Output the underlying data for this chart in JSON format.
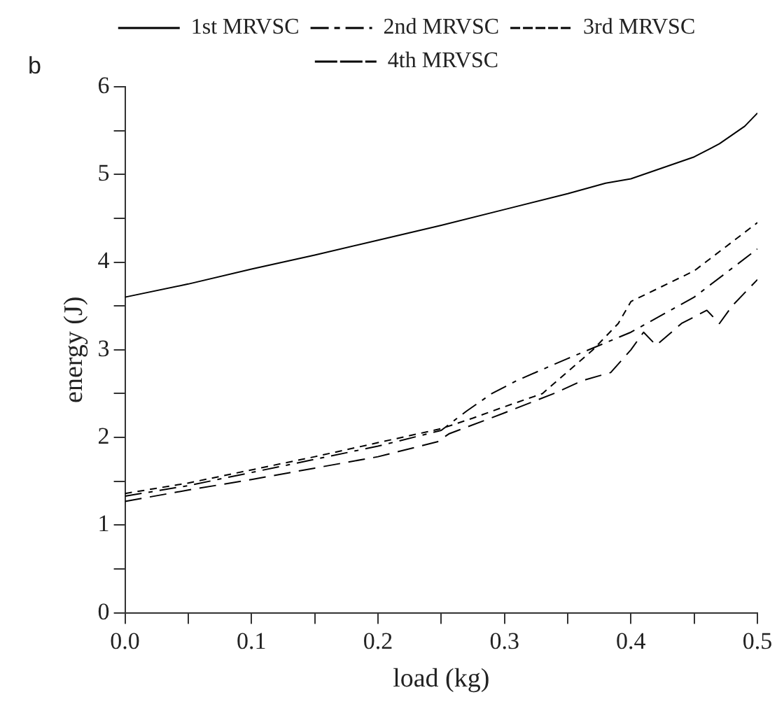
{
  "chart_data": {
    "type": "line",
    "xlabel": "load (kg)",
    "ylabel": "energy (J)",
    "annotations": [
      "b"
    ],
    "xlim": [
      0,
      0.5
    ],
    "xticks": [
      {
        "value": 0,
        "label": "0.0"
      },
      {
        "value": 0.05,
        "label": null
      },
      {
        "value": 0.1,
        "label": "0.1"
      },
      {
        "value": 0.15,
        "label": null
      },
      {
        "value": 0.2,
        "label": "0.2"
      },
      {
        "value": 0.25,
        "label": null
      },
      {
        "value": 0.3,
        "label": "0.3"
      },
      {
        "value": 0.35,
        "label": null
      },
      {
        "value": 0.4,
        "label": "0.4"
      },
      {
        "value": 0.45,
        "label": null
      },
      {
        "value": 0.5,
        "label": "0.5"
      }
    ],
    "ylim": [
      0,
      6
    ],
    "yticks": [
      0,
      {
        "value": 0.5,
        "label": null
      },
      1,
      {
        "value": 1.5,
        "label": null
      },
      2,
      {
        "value": 2.5,
        "label": null
      },
      3,
      {
        "value": 3.5,
        "label": null
      },
      4,
      {
        "value": 4.5,
        "label": null
      },
      5,
      {
        "value": 5.5,
        "label": null
      },
      6
    ],
    "grid": false,
    "legend": "top",
    "marker": "none",
    "series": [
      {
        "name": "1st MRVSC",
        "color": "#000000",
        "line_style": "solid",
        "x": [
          0,
          0.05,
          0.1,
          0.15,
          0.2,
          0.25,
          0.3,
          0.35,
          0.38,
          0.4,
          0.42,
          0.45,
          0.47,
          0.48,
          0.49,
          0.5
        ],
        "values": [
          3.6,
          3.75,
          3.92,
          4.08,
          4.25,
          4.42,
          4.6,
          4.78,
          4.9,
          4.95,
          5.05,
          5.2,
          5.35,
          5.45,
          5.55,
          5.7
        ]
      },
      {
        "name": "2nd MRVSC",
        "color": "#000000",
        "line_style": "dashdot",
        "x": [
          0,
          0.05,
          0.1,
          0.15,
          0.2,
          0.25,
          0.27,
          0.29,
          0.31,
          0.35,
          0.4,
          0.45,
          0.5
        ],
        "values": [
          1.33,
          1.45,
          1.6,
          1.75,
          1.9,
          2.08,
          2.3,
          2.5,
          2.65,
          2.9,
          3.2,
          3.6,
          4.15
        ]
      },
      {
        "name": "3rd MRVSC",
        "color": "#000000",
        "line_style": "dashed",
        "x": [
          0,
          0.05,
          0.1,
          0.15,
          0.2,
          0.25,
          0.275,
          0.3,
          0.33,
          0.35,
          0.37,
          0.39,
          0.4,
          0.45,
          0.5
        ],
        "values": [
          1.36,
          1.48,
          1.63,
          1.78,
          1.94,
          2.1,
          2.22,
          2.35,
          2.5,
          2.75,
          3.0,
          3.3,
          3.55,
          3.9,
          4.45
        ]
      },
      {
        "name": "4th MRVSC",
        "color": "#000000",
        "line_style": "longdash",
        "x": [
          0,
          0.05,
          0.1,
          0.15,
          0.2,
          0.247,
          0.256,
          0.3,
          0.339,
          0.362,
          0.384,
          0.4,
          0.41,
          0.42,
          0.44,
          0.46,
          0.47,
          0.48,
          0.5
        ],
        "values": [
          1.27,
          1.4,
          1.52,
          1.65,
          1.78,
          1.95,
          2.04,
          2.28,
          2.5,
          2.65,
          2.74,
          3.0,
          3.2,
          3.05,
          3.3,
          3.45,
          3.3,
          3.5,
          3.8
        ]
      }
    ]
  }
}
